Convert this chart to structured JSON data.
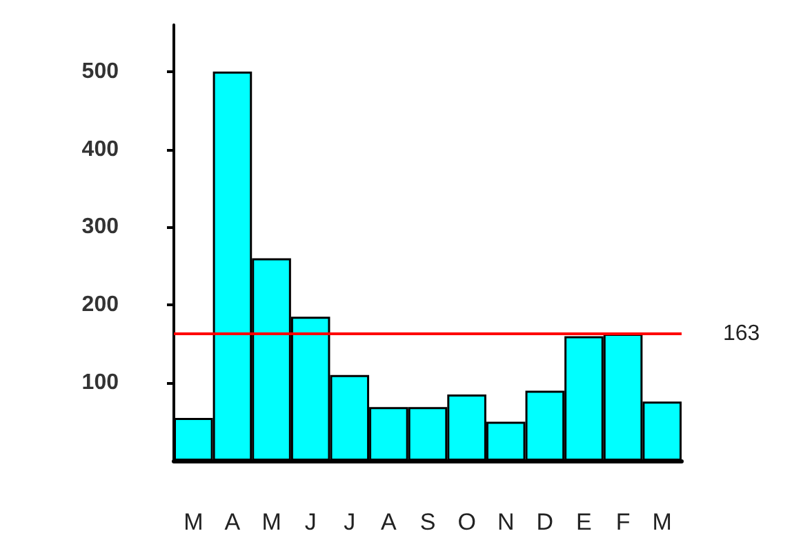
{
  "chart_data": {
    "type": "bar",
    "categories": [
      "M",
      "A",
      "M",
      "J",
      "J",
      "A",
      "S",
      "O",
      "N",
      "D",
      "E",
      "F",
      "M"
    ],
    "values": [
      55,
      500,
      260,
      185,
      110,
      69,
      69,
      85,
      50,
      90,
      160,
      163,
      76
    ],
    "color": "#00ffff",
    "ylim": [
      0,
      560
    ],
    "yticks": [
      100,
      200,
      300,
      400,
      500
    ],
    "grid": false,
    "ref_lines": [
      {
        "axis": "y",
        "value": 163,
        "label": "163",
        "color": "#ff0000"
      }
    ]
  }
}
